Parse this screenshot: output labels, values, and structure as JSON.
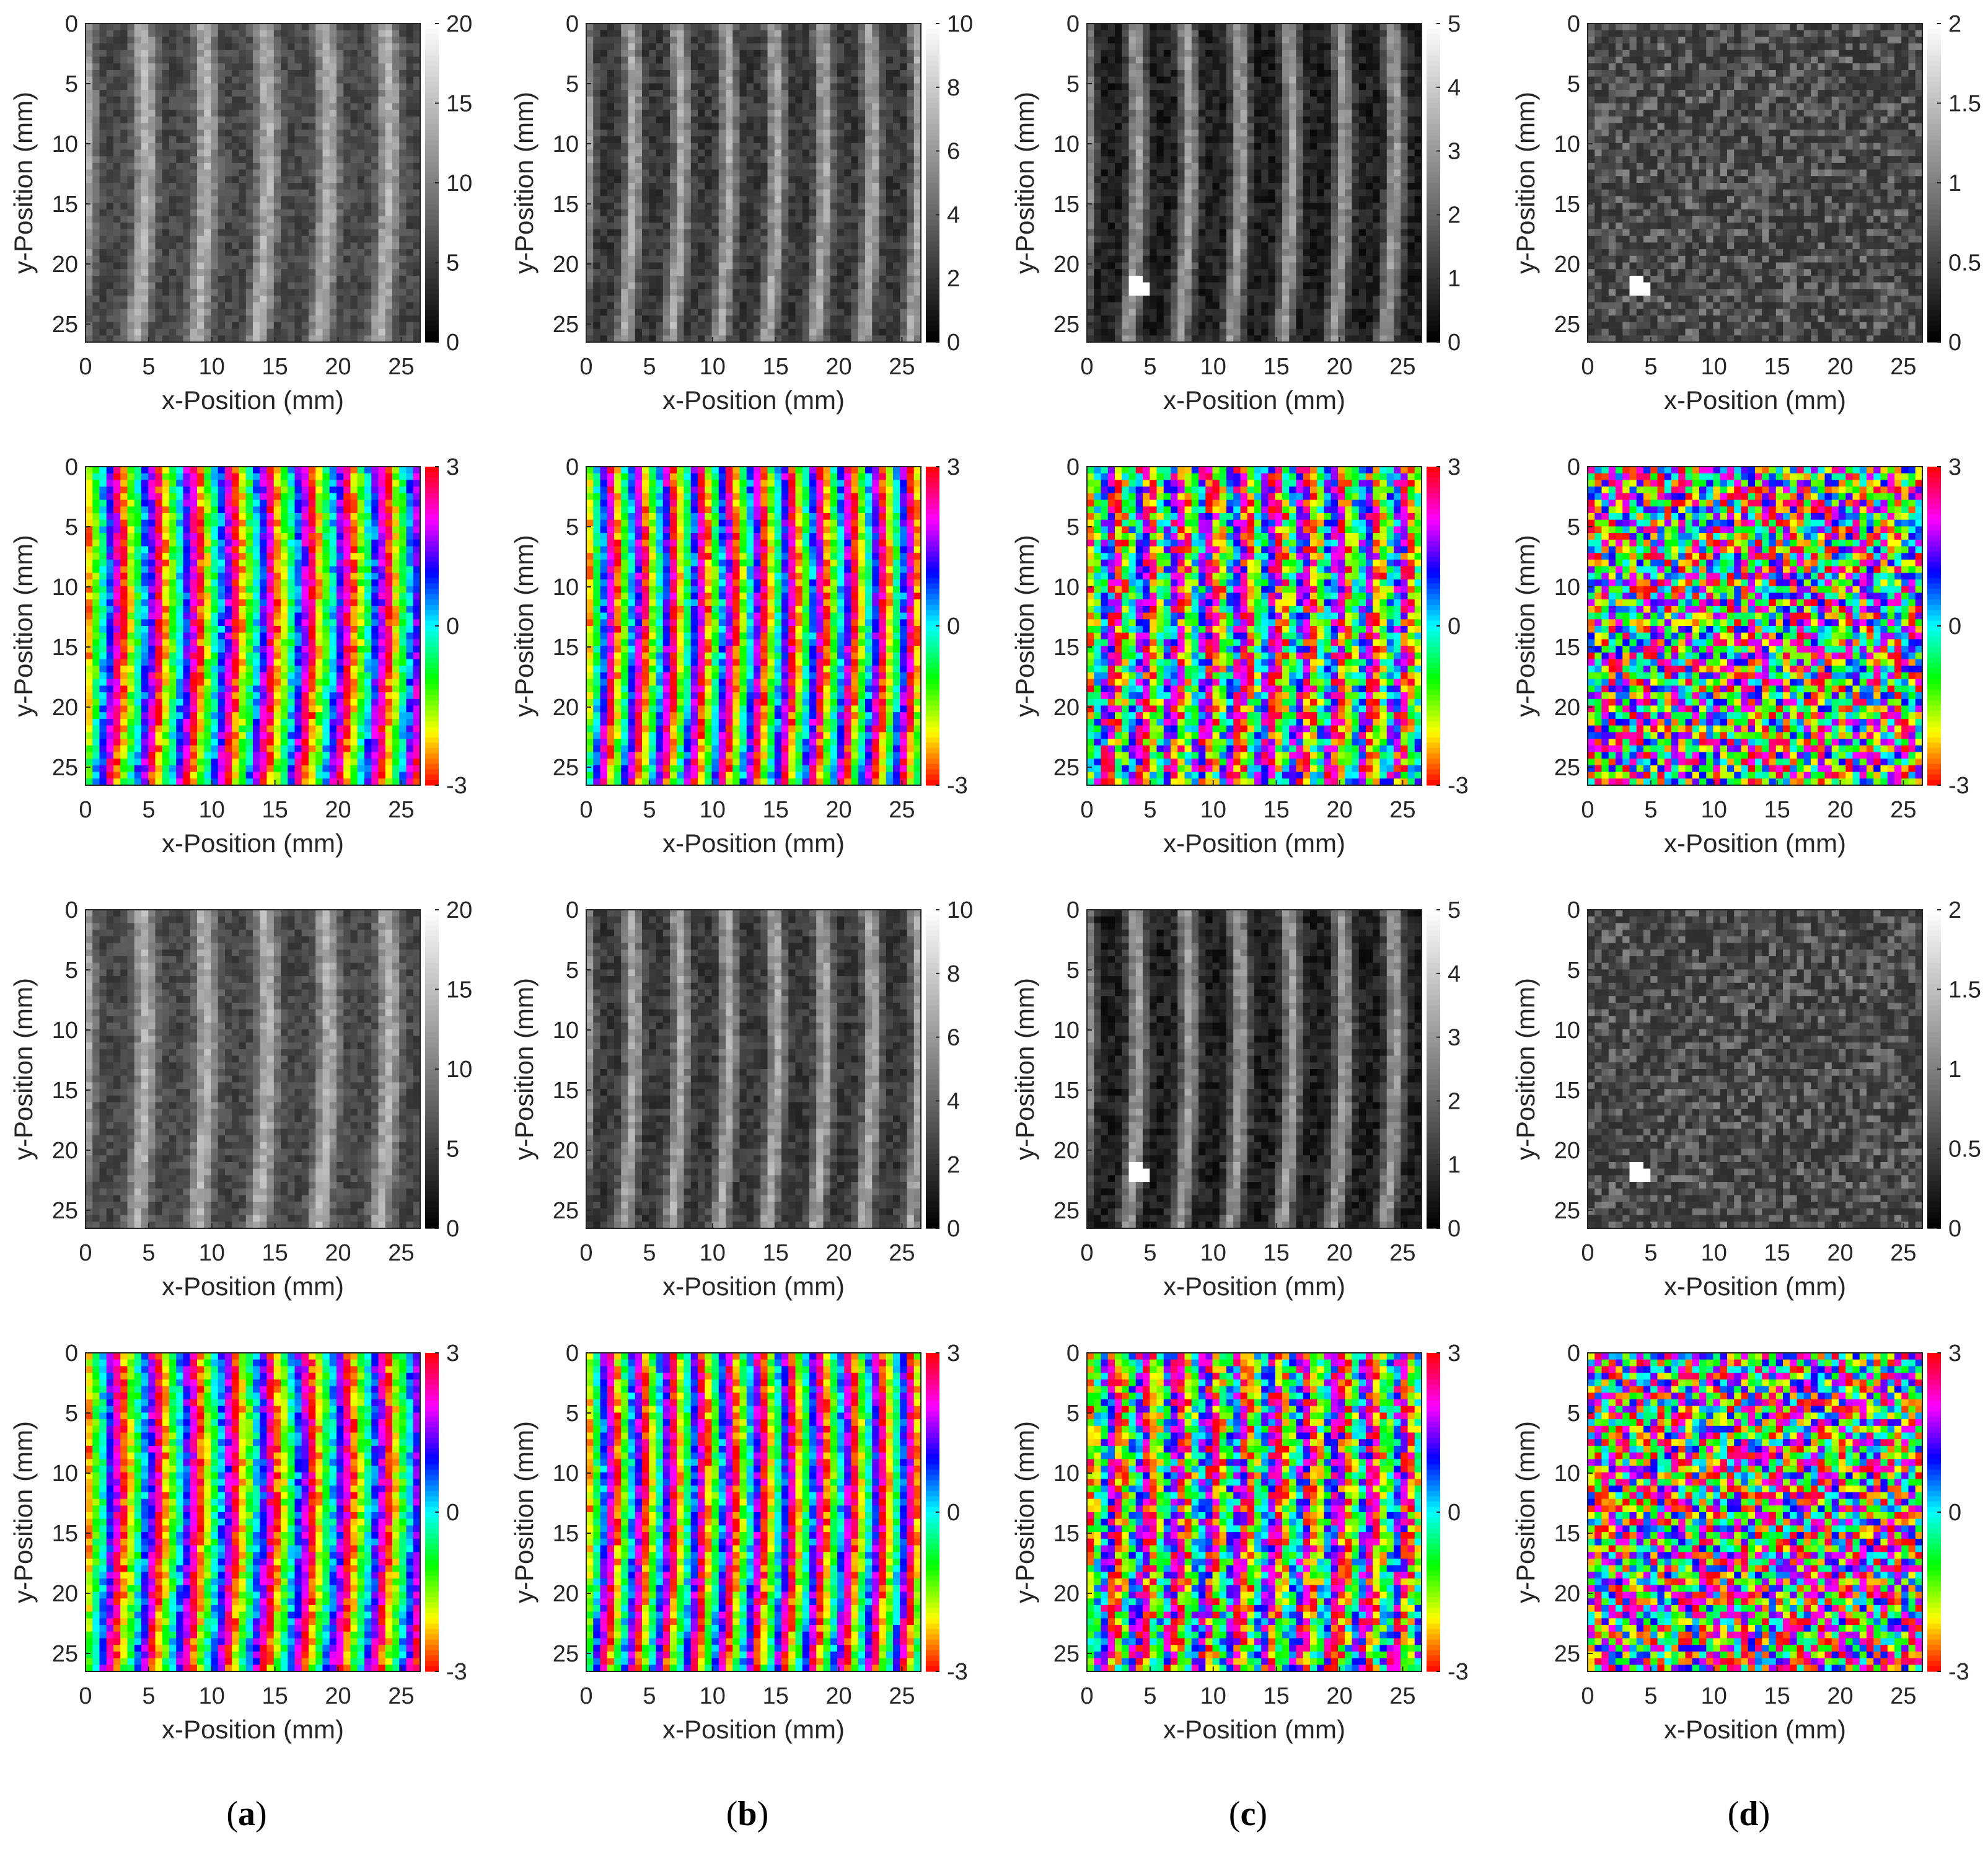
{
  "figure": {
    "x_axis_label": "x-Position (mm)",
    "y_axis_label": "y-Position (mm)",
    "x_ticks": [
      "0",
      "5",
      "10",
      "15",
      "20",
      "25"
    ],
    "y_ticks": [
      "0",
      "5",
      "10",
      "15",
      "20",
      "25"
    ],
    "captions": [
      {
        "letter": "a",
        "open": "(",
        "close": ")"
      },
      {
        "letter": "b",
        "open": "(",
        "close": ")"
      },
      {
        "letter": "c",
        "open": "(",
        "close": ")"
      },
      {
        "letter": "d",
        "open": "(",
        "close": ")"
      }
    ]
  },
  "chart_data": [
    {
      "type": "heatmap",
      "row": 1,
      "column": "a",
      "kind": "amplitude",
      "colormap": "gray",
      "xlim": [
        0,
        26.5
      ],
      "ylim": [
        0,
        26.5
      ],
      "clim": [
        0,
        20
      ],
      "colorbar_ticks": [
        "0",
        "5",
        "10",
        "15",
        "20"
      ],
      "pattern": "vertical stripes",
      "xlabel": "x-Position (mm)",
      "ylabel": "y-Position (mm)"
    },
    {
      "type": "heatmap",
      "row": 1,
      "column": "b",
      "kind": "amplitude",
      "colormap": "gray",
      "xlim": [
        0,
        26.5
      ],
      "ylim": [
        0,
        26.5
      ],
      "clim": [
        0,
        10
      ],
      "colorbar_ticks": [
        "0",
        "2",
        "4",
        "6",
        "8",
        "10"
      ],
      "pattern": "vertical stripes",
      "xlabel": "x-Position (mm)",
      "ylabel": "y-Position (mm)"
    },
    {
      "type": "heatmap",
      "row": 1,
      "column": "c",
      "kind": "amplitude",
      "colormap": "gray",
      "xlim": [
        0,
        26.5
      ],
      "ylim": [
        0,
        26.5
      ],
      "clim": [
        0,
        5
      ],
      "colorbar_ticks": [
        "0",
        "1",
        "2",
        "3",
        "4",
        "5"
      ],
      "pattern": "vertical stripes with bright spot near (4, 22)",
      "xlabel": "x-Position (mm)",
      "ylabel": "y-Position (mm)"
    },
    {
      "type": "heatmap",
      "row": 1,
      "column": "d",
      "kind": "amplitude",
      "colormap": "gray",
      "xlim": [
        0,
        26.5
      ],
      "ylim": [
        0,
        26.5
      ],
      "clim": [
        0,
        2
      ],
      "colorbar_ticks": [
        "0",
        "0.5",
        "1",
        "1.5",
        "2"
      ],
      "pattern": "speckle with bright spot near (4, 22)",
      "xlabel": "x-Position (mm)",
      "ylabel": "y-Position (mm)"
    },
    {
      "type": "heatmap",
      "row": 2,
      "column": "a",
      "kind": "phase",
      "colormap": "hsv",
      "xlim": [
        0,
        26.5
      ],
      "ylim": [
        0,
        26.5
      ],
      "clim": [
        -3,
        3
      ],
      "colorbar_ticks": [
        "-3",
        "0",
        "3"
      ],
      "pattern": "vertical phase stripes",
      "xlabel": "x-Position (mm)",
      "ylabel": "y-Position (mm)"
    },
    {
      "type": "heatmap",
      "row": 2,
      "column": "b",
      "kind": "phase",
      "colormap": "hsv",
      "xlim": [
        0,
        26.5
      ],
      "ylim": [
        0,
        26.5
      ],
      "clim": [
        -3,
        3
      ],
      "colorbar_ticks": [
        "-3",
        "0",
        "3"
      ],
      "pattern": "vertical phase stripes",
      "xlabel": "x-Position (mm)",
      "ylabel": "y-Position (mm)"
    },
    {
      "type": "heatmap",
      "row": 2,
      "column": "c",
      "kind": "phase",
      "colormap": "hsv",
      "xlim": [
        0,
        26.5
      ],
      "ylim": [
        0,
        26.5
      ],
      "clim": [
        -3,
        3
      ],
      "colorbar_ticks": [
        "-3",
        "0",
        "3"
      ],
      "pattern": "noisy vertical phase stripes",
      "xlabel": "x-Position (mm)",
      "ylabel": "y-Position (mm)"
    },
    {
      "type": "heatmap",
      "row": 2,
      "column": "d",
      "kind": "phase",
      "colormap": "hsv",
      "xlim": [
        0,
        26.5
      ],
      "ylim": [
        0,
        26.5
      ],
      "clim": [
        -3,
        3
      ],
      "colorbar_ticks": [
        "-3",
        "0",
        "3"
      ],
      "pattern": "random phase speckle",
      "xlabel": "x-Position (mm)",
      "ylabel": "y-Position (mm)"
    },
    {
      "type": "heatmap",
      "row": 3,
      "column": "a",
      "kind": "amplitude",
      "colormap": "gray",
      "xlim": [
        0,
        26.5
      ],
      "ylim": [
        0,
        26.5
      ],
      "clim": [
        0,
        20
      ],
      "colorbar_ticks": [
        "0",
        "5",
        "10",
        "15",
        "20"
      ],
      "pattern": "thin vertical stripes",
      "xlabel": "x-Position (mm)",
      "ylabel": "y-Position (mm)"
    },
    {
      "type": "heatmap",
      "row": 3,
      "column": "b",
      "kind": "amplitude",
      "colormap": "gray",
      "xlim": [
        0,
        26.5
      ],
      "ylim": [
        0,
        26.5
      ],
      "clim": [
        0,
        10
      ],
      "colorbar_ticks": [
        "0",
        "2",
        "4",
        "6",
        "8",
        "10"
      ],
      "pattern": "thin vertical stripes",
      "xlabel": "x-Position (mm)",
      "ylabel": "y-Position (mm)"
    },
    {
      "type": "heatmap",
      "row": 3,
      "column": "c",
      "kind": "amplitude",
      "colormap": "gray",
      "xlim": [
        0,
        26.5
      ],
      "ylim": [
        0,
        26.5
      ],
      "clim": [
        0,
        5
      ],
      "colorbar_ticks": [
        "0",
        "1",
        "2",
        "3",
        "4",
        "5"
      ],
      "pattern": "faint vertical stripes with bright spot near (4, 22)",
      "xlabel": "x-Position (mm)",
      "ylabel": "y-Position (mm)"
    },
    {
      "type": "heatmap",
      "row": 3,
      "column": "d",
      "kind": "amplitude",
      "colormap": "gray",
      "xlim": [
        0,
        26.5
      ],
      "ylim": [
        0,
        26.5
      ],
      "clim": [
        0,
        2
      ],
      "colorbar_ticks": [
        "0",
        "0.5",
        "1",
        "1.5",
        "2"
      ],
      "pattern": "speckle with bright spot near (4, 22)",
      "xlabel": "x-Position (mm)",
      "ylabel": "y-Position (mm)"
    },
    {
      "type": "heatmap",
      "row": 4,
      "column": "a",
      "kind": "phase",
      "colormap": "hsv",
      "xlim": [
        0,
        26.5
      ],
      "ylim": [
        0,
        26.5
      ],
      "clim": [
        -3,
        3
      ],
      "colorbar_ticks": [
        "-3",
        "0",
        "3"
      ],
      "pattern": "smooth vertical phase stripes",
      "xlabel": "x-Position (mm)",
      "ylabel": "y-Position (mm)"
    },
    {
      "type": "heatmap",
      "row": 4,
      "column": "b",
      "kind": "phase",
      "colormap": "hsv",
      "xlim": [
        0,
        26.5
      ],
      "ylim": [
        0,
        26.5
      ],
      "clim": [
        -3,
        3
      ],
      "colorbar_ticks": [
        "-3",
        "0",
        "3"
      ],
      "pattern": "vertical phase stripes",
      "xlabel": "x-Position (mm)",
      "ylabel": "y-Position (mm)"
    },
    {
      "type": "heatmap",
      "row": 4,
      "column": "c",
      "kind": "phase",
      "colormap": "hsv",
      "xlim": [
        0,
        26.5
      ],
      "ylim": [
        0,
        26.5
      ],
      "clim": [
        -3,
        3
      ],
      "colorbar_ticks": [
        "-3",
        "0",
        "3"
      ],
      "pattern": "noisy vertical phase stripes",
      "xlabel": "x-Position (mm)",
      "ylabel": "y-Position (mm)"
    },
    {
      "type": "heatmap",
      "row": 4,
      "column": "d",
      "kind": "phase",
      "colormap": "hsv",
      "xlim": [
        0,
        26.5
      ],
      "ylim": [
        0,
        26.5
      ],
      "clim": [
        -3,
        3
      ],
      "colorbar_ticks": [
        "-3",
        "0",
        "3"
      ],
      "pattern": "random phase speckle",
      "xlabel": "x-Position (mm)",
      "ylabel": "y-Position (mm)"
    }
  ]
}
